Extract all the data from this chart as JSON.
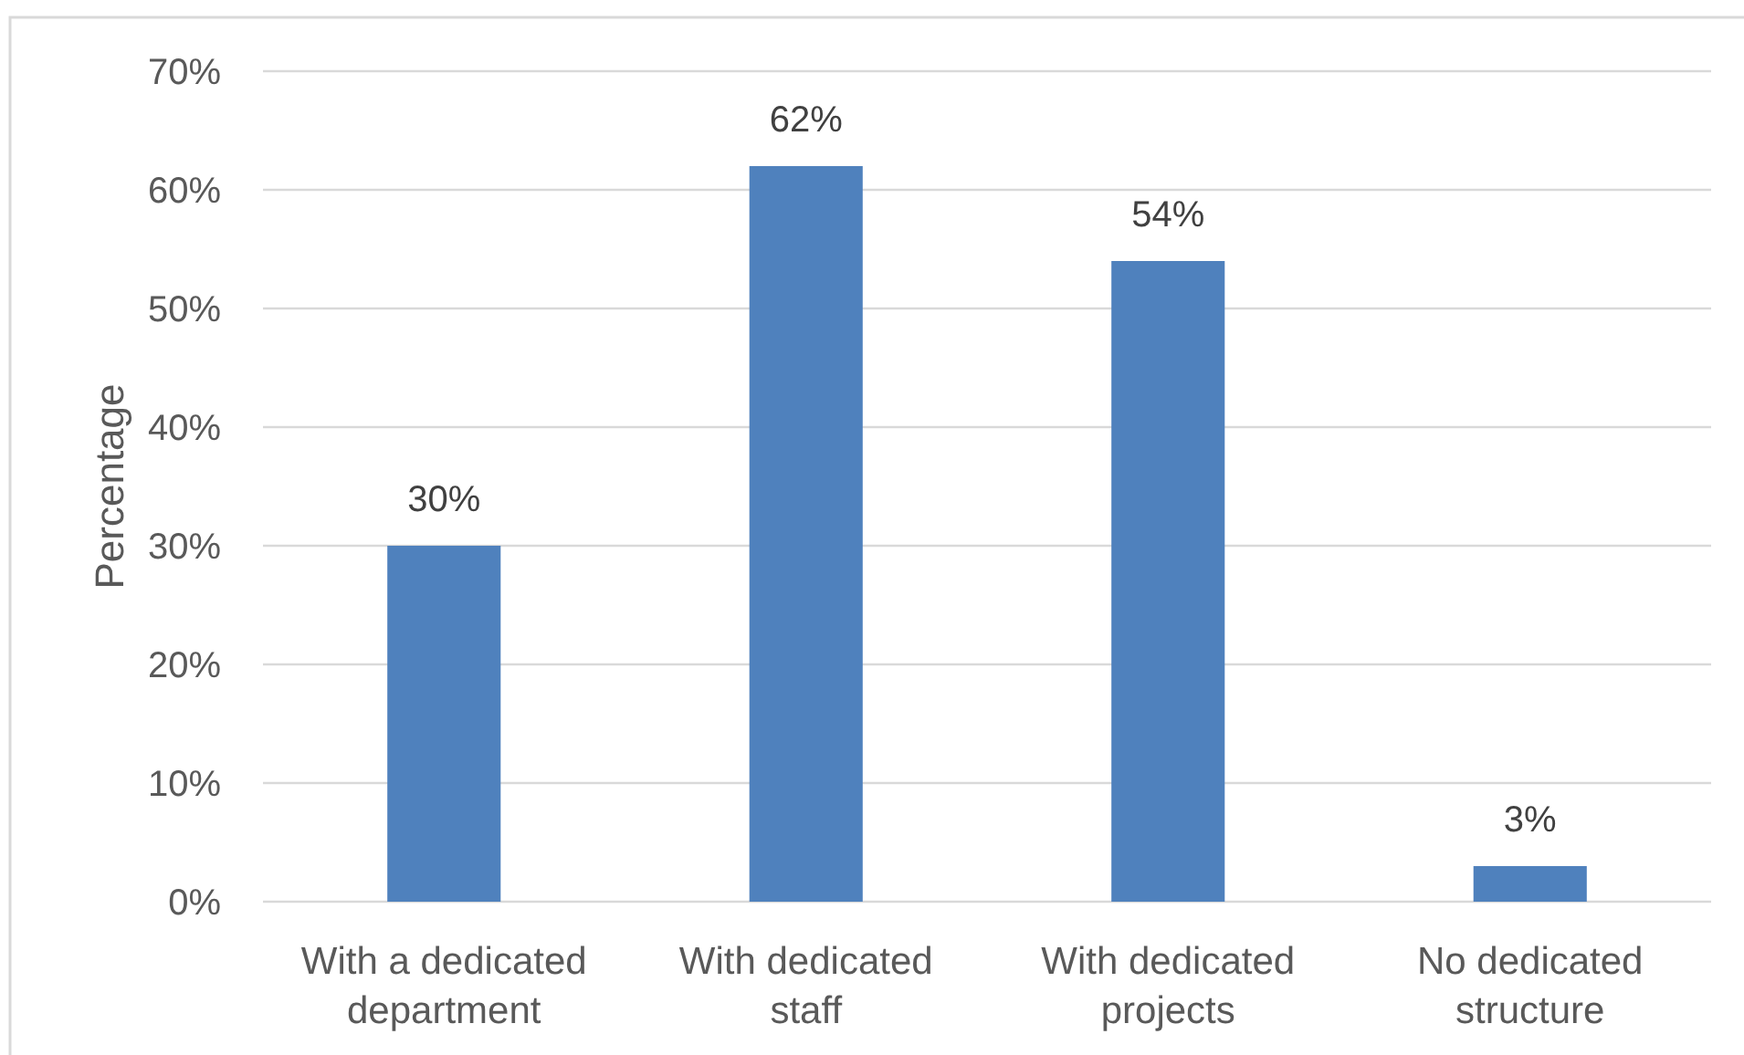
{
  "chart_data": {
    "type": "bar",
    "ylabel": "Percentage",
    "categories": [
      "With a dedicated department",
      "With dedicated staff",
      "With dedicated projects",
      "No dedicated structure"
    ],
    "values": [
      30,
      62,
      54,
      3
    ],
    "color": "#4f81bd",
    "value_labels": [
      "30%",
      "62%",
      "54%",
      "3%"
    ],
    "ylim": [
      0,
      70
    ],
    "yticks": [
      {
        "value": 0,
        "label": "0%"
      },
      {
        "value": 10,
        "label": "10%"
      },
      {
        "value": 20,
        "label": "20%"
      },
      {
        "value": 30,
        "label": "30%"
      },
      {
        "value": 40,
        "label": "40%"
      },
      {
        "value": 50,
        "label": "50%"
      },
      {
        "value": 60,
        "label": "60%"
      },
      {
        "value": 70,
        "label": "70%"
      }
    ],
    "grid": "y"
  }
}
